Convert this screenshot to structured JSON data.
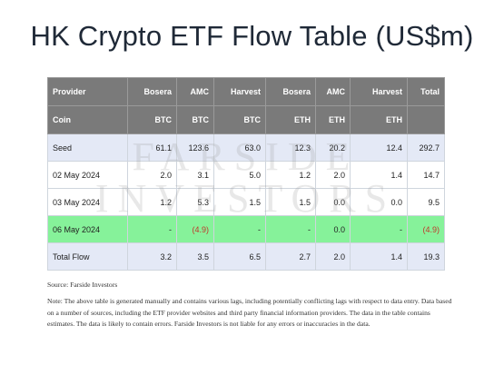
{
  "title": "HK Crypto ETF Flow Table (US$m)",
  "watermark": [
    "FARSIDE",
    "INVESTORS"
  ],
  "chart_data": {
    "type": "table",
    "header_row1": [
      "Provider",
      "Bosera",
      "AMC",
      "Harvest",
      "Bosera",
      "AMC",
      "Harvest",
      "Total"
    ],
    "header_row2": [
      "Coin",
      "BTC",
      "BTC",
      "BTC",
      "ETH",
      "ETH",
      "ETH",
      ""
    ],
    "rows": [
      {
        "label": "Seed",
        "cells": [
          "61.1",
          "123.6",
          "63.0",
          "12.3",
          "20.2",
          "12.4",
          "292.7"
        ]
      },
      {
        "label": "02 May 2024",
        "cells": [
          "2.0",
          "3.1",
          "5.0",
          "1.2",
          "2.0",
          "1.4",
          "14.7"
        ]
      },
      {
        "label": "03 May 2024",
        "cells": [
          "1.2",
          "5.3",
          "1.5",
          "1.5",
          "0.0",
          "0.0",
          "9.5"
        ]
      },
      {
        "label": "06 May 2024",
        "cells": [
          "-",
          "(4.9)",
          "-",
          "-",
          "0.0",
          "-",
          "(4.9)"
        ]
      },
      {
        "label": "Total Flow",
        "cells": [
          "3.2",
          "3.5",
          "6.5",
          "2.7",
          "2.0",
          "1.4",
          "19.3"
        ]
      }
    ],
    "highlight_row": "06 May 2024",
    "colors": {
      "header_bg": "#7a7a7a",
      "header_text": "#ffffff",
      "seed_and_total_bg": "#e4e9f6",
      "highlight_bg": "#86f29a",
      "negative_text": "#c0392b"
    }
  },
  "notes": {
    "source": "Source: Farside Investors",
    "note": "Note: The above table is generated manually and contains various lags, including potentially conflicting lags with respect to data entry. Data based on a number of sources, including the ETF provider websites and third party financial information providers. The data in the table contains estimates. The data is likely to contain errors. Farside Investors is not liable for any errors or inaccuracies in the data."
  }
}
